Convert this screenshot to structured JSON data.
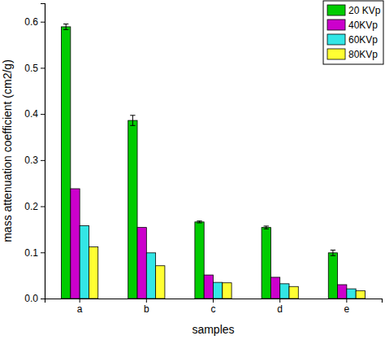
{
  "chart_data": {
    "type": "bar",
    "x_label": "samples",
    "y_label": "mass attenuation coefficient (cm2/g)",
    "categories": [
      "a",
      "b",
      "c",
      "d",
      "e"
    ],
    "series": [
      {
        "name": "20 KVp",
        "color": "#00cc00",
        "values": [
          0.589,
          0.386,
          0.166,
          0.154,
          0.099
        ],
        "errors": [
          0.006,
          0.011,
          0.002,
          0.003,
          0.006
        ]
      },
      {
        "name": "40KVp",
        "color": "#cc00cc",
        "values": [
          0.238,
          0.154,
          0.051,
          0.046,
          0.03
        ]
      },
      {
        "name": "60KVp",
        "color": "#33e6e6",
        "values": [
          0.158,
          0.099,
          0.035,
          0.032,
          0.021
        ]
      },
      {
        "name": "80KVp",
        "color": "#ffff33",
        "values": [
          0.112,
          0.071,
          0.034,
          0.026,
          0.017
        ]
      }
    ],
    "ylim": [
      0,
      0.64
    ],
    "yticks": [
      {
        "value": 0,
        "label": "0.0"
      },
      0.1,
      0.2,
      0.3,
      0.4,
      0.5,
      0.6
    ],
    "grid": false,
    "legend": "upper right"
  }
}
